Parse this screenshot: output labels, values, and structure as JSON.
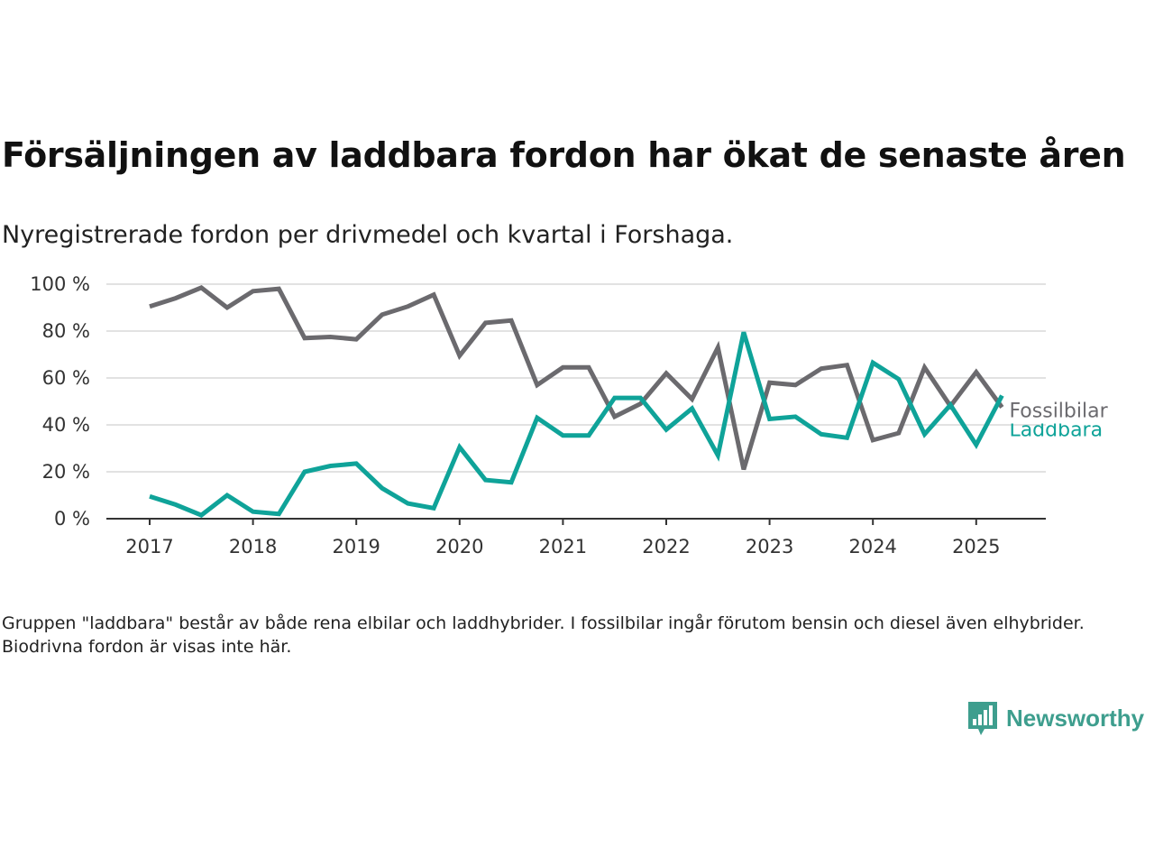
{
  "title": "Försäljningen av laddbara fordon har ökat de senaste åren",
  "subtitle": "Nyregistrerade fordon per drivmedel och kvartal i Forshaga.",
  "footnote": "Gruppen \"laddbara\" består av både rena elbilar och laddhybrider. I fossilbilar ingår förutom bensin och diesel även elhybrider. Biodrivna fordon är visas inte här.",
  "brand": {
    "name": "Newsworthy",
    "icon": "newsworthy-logo-icon",
    "color": "#3e9e8e"
  },
  "chart_data": {
    "type": "line",
    "x": [
      "2017-Q1",
      "2017-Q2",
      "2017-Q3",
      "2017-Q4",
      "2018-Q1",
      "2018-Q2",
      "2018-Q3",
      "2018-Q4",
      "2019-Q1",
      "2019-Q2",
      "2019-Q3",
      "2019-Q4",
      "2020-Q1",
      "2020-Q2",
      "2020-Q3",
      "2020-Q4",
      "2021-Q1",
      "2021-Q2",
      "2021-Q3",
      "2021-Q4",
      "2022-Q1",
      "2022-Q2",
      "2022-Q3",
      "2022-Q4",
      "2023-Q1",
      "2023-Q2",
      "2023-Q3",
      "2023-Q4",
      "2024-Q1",
      "2024-Q2",
      "2024-Q3",
      "2024-Q4",
      "2025-Q1",
      "2025-Q2"
    ],
    "x_ticks": [
      "2017",
      "2018",
      "2019",
      "2020",
      "2021",
      "2022",
      "2023",
      "2024",
      "2025"
    ],
    "y_ticks": [
      "0 %",
      "20 %",
      "40 %",
      "60 %",
      "80 %",
      "100 %"
    ],
    "ylim": [
      0,
      100
    ],
    "grid": true,
    "series": [
      {
        "name": "Fossilbilar",
        "color": "#6b6a6e",
        "values": [
          90.5,
          94,
          98.5,
          90,
          97,
          98,
          77,
          77.5,
          76.5,
          87,
          90.5,
          95.5,
          69.5,
          83.5,
          84.5,
          57,
          64.5,
          64.5,
          43.5,
          49,
          62,
          51,
          73,
          21,
          58,
          57,
          64,
          65.5,
          33.5,
          36.5,
          64.5,
          48,
          62.5,
          47.5
        ]
      },
      {
        "name": "Laddbara",
        "color": "#0fa399",
        "values": [
          9.5,
          6,
          1.5,
          10,
          3,
          2,
          20,
          22.5,
          23.5,
          13,
          6.5,
          4.5,
          30.5,
          16.5,
          15.5,
          43,
          35.5,
          35.5,
          51.5,
          51.5,
          38,
          47,
          27,
          79.5,
          42.5,
          43.5,
          36,
          34.5,
          66.5,
          59.5,
          36,
          48.5,
          31.5,
          52.5
        ]
      }
    ]
  }
}
